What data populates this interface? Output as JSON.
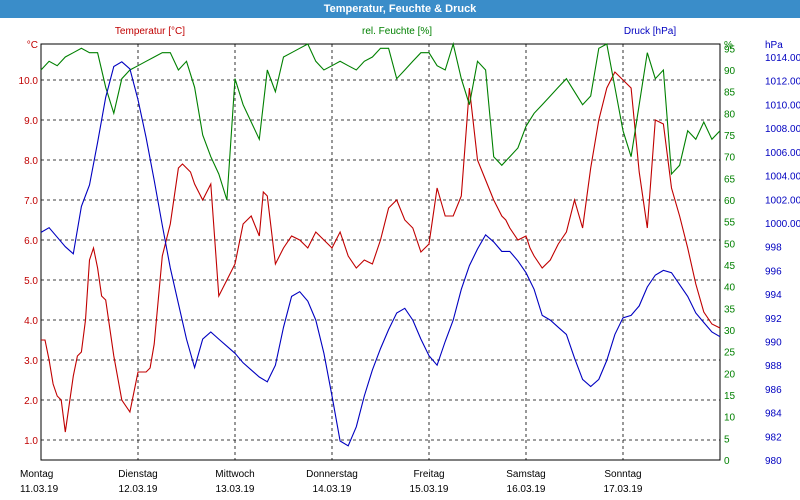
{
  "chart_data": {
    "type": "line",
    "title": "Temperatur, Feuchte & Druck",
    "x_days": [
      {
        "weekday": "Montag",
        "date": "11.03.19"
      },
      {
        "weekday": "Dienstag",
        "date": "12.03.19"
      },
      {
        "weekday": "Mittwoch",
        "date": "13.03.19"
      },
      {
        "weekday": "Donnerstag",
        "date": "14.03.19"
      },
      {
        "weekday": "Freitag",
        "date": "15.03.19"
      },
      {
        "weekday": "Samstag",
        "date": "16.03.19"
      },
      {
        "weekday": "Sonntag",
        "date": "17.03.19"
      }
    ],
    "x_range_hours": [
      0,
      168
    ],
    "axes": {
      "temperature": {
        "label": "Temperatur [°C]",
        "unit": "°C",
        "range": [
          0.5,
          10.9
        ],
        "ticks": [
          1.0,
          2.0,
          3.0,
          4.0,
          5.0,
          6.0,
          7.0,
          8.0,
          9.0,
          10.0
        ],
        "color": "#c00000"
      },
      "humidity": {
        "label": "rel. Feuchte [%]",
        "unit": "%",
        "range": [
          0,
          96
        ],
        "ticks": [
          0,
          5,
          10,
          15,
          20,
          25,
          30,
          35,
          40,
          45,
          50,
          55,
          60,
          65,
          70,
          75,
          80,
          85,
          90,
          95
        ],
        "color": "#008000"
      },
      "pressure": {
        "label": "Druck [hPa]",
        "unit": "hPa",
        "range": [
          980,
          1015.1
        ],
        "ticks": [
          980,
          982,
          984,
          986,
          988,
          990,
          992,
          994,
          996,
          998,
          1000,
          1002,
          1004,
          1006,
          1008,
          1010,
          1012,
          1014
        ],
        "color": "#0000c0"
      }
    },
    "grid": true,
    "series": [
      {
        "name": "Temperatur [°C]",
        "axis": "temperature",
        "color": "#c00000",
        "x": [
          0,
          1,
          2,
          3,
          4,
          5,
          6,
          7,
          8,
          9,
          10,
          11,
          12,
          13,
          14,
          15,
          16,
          18,
          20,
          22,
          24,
          26,
          27,
          28,
          30,
          32,
          34,
          35,
          36,
          37,
          38,
          40,
          42,
          44,
          46,
          48,
          50,
          52,
          54,
          55,
          56,
          58,
          60,
          62,
          64,
          66,
          68,
          70,
          72,
          74,
          76,
          78,
          80,
          82,
          84,
          86,
          88,
          90,
          92,
          94,
          96,
          98,
          100,
          102,
          104,
          106,
          108,
          110,
          112,
          114,
          115,
          116,
          118,
          120,
          121,
          122,
          124,
          126,
          128,
          130,
          132,
          134,
          136,
          138,
          140,
          142,
          144,
          146,
          148,
          150,
          152,
          154,
          156,
          158,
          160,
          162,
          164,
          166,
          168
        ],
        "y": [
          3.5,
          3.5,
          3.0,
          2.4,
          2.1,
          2.0,
          1.2,
          1.9,
          2.6,
          3.1,
          3.2,
          4.0,
          5.5,
          5.8,
          5.3,
          4.6,
          4.5,
          3.1,
          2.0,
          1.7,
          2.7,
          2.7,
          2.8,
          3.4,
          5.6,
          6.4,
          7.8,
          7.9,
          7.8,
          7.7,
          7.4,
          7.0,
          7.4,
          4.6,
          5.0,
          5.4,
          6.4,
          6.6,
          6.1,
          7.2,
          7.1,
          5.4,
          5.8,
          6.1,
          6.0,
          5.8,
          6.2,
          6.0,
          5.8,
          6.2,
          5.6,
          5.3,
          5.5,
          5.4,
          6.0,
          6.8,
          7.0,
          6.5,
          6.3,
          5.7,
          5.9,
          7.3,
          6.6,
          6.6,
          7.1,
          9.8,
          8.0,
          7.5,
          7.0,
          6.6,
          6.5,
          6.3,
          6.0,
          6.1,
          5.8,
          5.6,
          5.3,
          5.5,
          5.9,
          6.2,
          7.0,
          6.3,
          7.8,
          9.0,
          9.8,
          10.2,
          10.0,
          9.8,
          7.7,
          6.3,
          9.0,
          8.9,
          7.3,
          6.6,
          5.8,
          4.9,
          4.2,
          3.9,
          3.8
        ]
      },
      {
        "name": "rel. Feuchte [%]",
        "axis": "humidity",
        "color": "#008000",
        "x": [
          0,
          2,
          4,
          6,
          8,
          10,
          12,
          14,
          16,
          18,
          20,
          22,
          24,
          26,
          28,
          30,
          32,
          34,
          36,
          38,
          40,
          42,
          44,
          46,
          48,
          50,
          52,
          54,
          56,
          58,
          60,
          62,
          64,
          66,
          68,
          70,
          72,
          74,
          76,
          78,
          80,
          82,
          84,
          86,
          88,
          90,
          92,
          94,
          96,
          98,
          100,
          102,
          104,
          106,
          108,
          110,
          112,
          114,
          116,
          118,
          120,
          122,
          124,
          126,
          128,
          130,
          132,
          134,
          136,
          138,
          140,
          142,
          144,
          146,
          148,
          150,
          152,
          154,
          156,
          158,
          160,
          162,
          164,
          166,
          168
        ],
        "y": [
          90,
          92,
          91,
          93,
          94,
          95,
          94,
          94,
          86,
          80,
          88,
          90,
          91,
          92,
          93,
          94,
          94,
          90,
          92,
          86,
          75,
          70,
          66,
          60,
          88,
          82,
          78,
          74,
          90,
          85,
          93,
          94,
          95,
          96,
          92,
          90,
          91,
          92,
          91,
          90,
          92,
          93,
          95,
          95,
          88,
          90,
          92,
          94,
          94,
          91,
          90,
          96,
          88,
          82,
          92,
          90,
          70,
          68,
          70,
          72,
          77,
          80,
          82,
          84,
          86,
          88,
          85,
          82,
          84,
          95,
          96,
          86,
          76,
          70,
          82,
          94,
          88,
          90,
          66,
          68,
          76,
          74,
          78,
          74,
          76
        ]
      },
      {
        "name": "Druck [hPa]",
        "axis": "pressure",
        "color": "#0000c0",
        "x": [
          0,
          2,
          4,
          6,
          8,
          10,
          12,
          14,
          16,
          18,
          20,
          22,
          24,
          26,
          28,
          30,
          32,
          34,
          36,
          38,
          40,
          42,
          44,
          46,
          48,
          50,
          52,
          54,
          56,
          58,
          60,
          62,
          64,
          66,
          68,
          70,
          72,
          74,
          76,
          78,
          80,
          82,
          84,
          86,
          88,
          90,
          92,
          94,
          96,
          98,
          100,
          102,
          104,
          106,
          108,
          110,
          112,
          114,
          116,
          118,
          120,
          122,
          124,
          126,
          128,
          130,
          132,
          134,
          136,
          138,
          140,
          142,
          144,
          146,
          148,
          150,
          152,
          154,
          156,
          158,
          160,
          162,
          164,
          166,
          168
        ],
        "y": [
          999.2,
          999.6,
          998.8,
          998.0,
          997.4,
          1001.4,
          1003.2,
          1006.8,
          1010.6,
          1013.2,
          1013.6,
          1013.0,
          1010.4,
          1007.2,
          1003.6,
          999.8,
          996.2,
          993.2,
          990.2,
          987.8,
          990.2,
          990.8,
          990.2,
          989.6,
          989.0,
          988.2,
          987.6,
          987.0,
          986.6,
          988.0,
          991.2,
          993.8,
          994.2,
          993.4,
          991.8,
          989.0,
          985.4,
          981.6,
          981.2,
          982.8,
          985.4,
          987.6,
          989.4,
          991.0,
          992.4,
          992.8,
          991.8,
          990.2,
          988.8,
          988.0,
          990.0,
          991.8,
          994.4,
          996.4,
          997.8,
          999.0,
          998.4,
          997.6,
          997.6,
          996.8,
          995.8,
          994.4,
          992.2,
          991.8,
          991.2,
          990.6,
          988.6,
          986.8,
          986.2,
          986.8,
          988.4,
          990.6,
          992.0,
          992.2,
          993.0,
          994.6,
          995.6,
          996.0,
          995.8,
          994.8,
          993.8,
          992.4,
          991.6,
          990.8,
          990.4
        ]
      }
    ]
  }
}
